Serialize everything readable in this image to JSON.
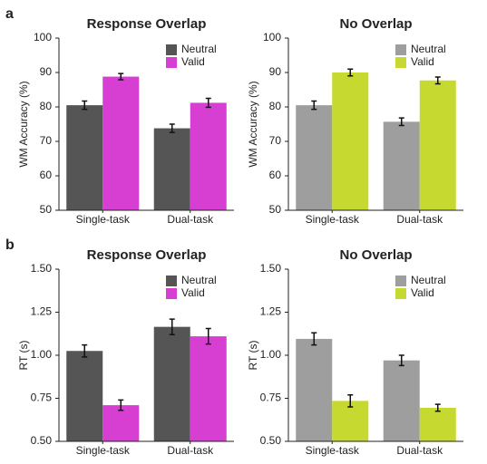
{
  "panel_labels": [
    "a",
    "b"
  ],
  "chart_data": [
    {
      "type": "bar",
      "title": "Response Overlap",
      "ylabel": "WM Accuracy (%)",
      "categories": [
        "Single-task",
        "Dual-task"
      ],
      "series": [
        {
          "name": "Neutral",
          "color": "#555555",
          "values": [
            80.5,
            73.8
          ],
          "errors": [
            1.2,
            1.2
          ]
        },
        {
          "name": "Valid",
          "color": "#d63fd1",
          "values": [
            88.8,
            81.2
          ],
          "errors": [
            0.9,
            1.3
          ]
        }
      ],
      "ylim": [
        50,
        100
      ],
      "yticks": [
        50,
        60,
        70,
        80,
        90,
        100
      ],
      "legend": "upper right"
    },
    {
      "type": "bar",
      "title": "No Overlap",
      "ylabel": "WM Accuracy (%)",
      "categories": [
        "Single-task",
        "Dual-task"
      ],
      "series": [
        {
          "name": "Neutral",
          "color": "#9e9e9e",
          "values": [
            80.5,
            75.7
          ],
          "errors": [
            1.2,
            1.1
          ]
        },
        {
          "name": "Valid",
          "color": "#c5d930",
          "values": [
            90,
            87.7
          ],
          "errors": [
            1.0,
            1.0
          ]
        }
      ],
      "ylim": [
        50,
        100
      ],
      "yticks": [
        50,
        60,
        70,
        80,
        90,
        100
      ],
      "legend": "upper right"
    },
    {
      "type": "bar",
      "title": "Response Overlap",
      "ylabel": "RT (s)",
      "categories": [
        "Single-task",
        "Dual-task"
      ],
      "series": [
        {
          "name": "Neutral",
          "color": "#555555",
          "values": [
            1.025,
            1.165
          ],
          "errors": [
            0.035,
            0.045
          ]
        },
        {
          "name": "Valid",
          "color": "#d63fd1",
          "values": [
            0.71,
            1.11
          ],
          "errors": [
            0.03,
            0.045
          ]
        }
      ],
      "ylim": [
        0.5,
        1.5
      ],
      "yticks": [
        {
          "value": 0.5,
          "label": "0.50"
        },
        0.75,
        {
          "value": 1,
          "label": "1.00"
        },
        1.25,
        {
          "value": 1.5,
          "label": "1.50"
        }
      ],
      "legend": "upper right"
    },
    {
      "type": "bar",
      "title": "No Overlap",
      "ylabel": "RT (s)",
      "categories": [
        "Single-task",
        "Dual-task"
      ],
      "series": [
        {
          "name": "Neutral",
          "color": "#9e9e9e",
          "values": [
            1.095,
            0.97
          ],
          "errors": [
            0.035,
            0.03
          ]
        },
        {
          "name": "Valid",
          "color": "#c5d930",
          "values": [
            0.735,
            0.695
          ],
          "errors": [
            0.035,
            0.02
          ]
        }
      ],
      "ylim": [
        0.5,
        1.5
      ],
      "yticks": [
        {
          "value": 0.5,
          "label": "0.50"
        },
        0.75,
        {
          "value": 1,
          "label": "1.00"
        },
        1.25,
        {
          "value": 1.5,
          "label": "1.50"
        }
      ],
      "legend": "upper right"
    }
  ]
}
